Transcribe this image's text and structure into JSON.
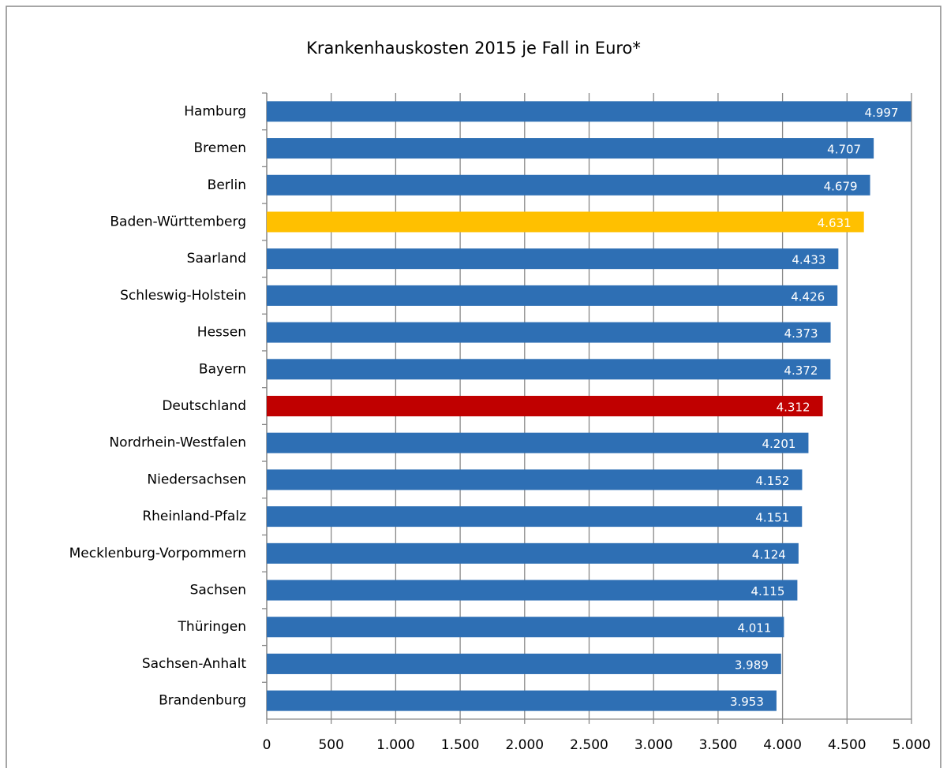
{
  "chart_data": {
    "type": "hbar",
    "title": "Krankenhauskosten 2015 je Fall in Euro*",
    "categories": [
      "Hamburg",
      "Bremen",
      "Berlin",
      "Baden-Württemberg",
      "Saarland",
      "Schleswig-Holstein",
      "Hessen",
      "Bayern",
      "Deutschland",
      "Nordrhein-Westfalen",
      "Niedersachsen",
      "Rheinland-Pfalz",
      "Mecklenburg-Vorpommern",
      "Sachsen",
      "Thüringen",
      "Sachsen-Anhalt",
      "Brandenburg"
    ],
    "values": [
      4997,
      4707,
      4679,
      4631,
      4433,
      4426,
      4373,
      4372,
      4312,
      4201,
      4152,
      4151,
      4124,
      4115,
      4011,
      3989,
      3953
    ],
    "value_labels": [
      "4.997",
      "4.707",
      "4.679",
      "4.631",
      "4.433",
      "4.426",
      "4.373",
      "4.372",
      "4.312",
      "4.201",
      "4.152",
      "4.151",
      "4.124",
      "4.115",
      "4.011",
      "3.989",
      "3.953"
    ],
    "colors": [
      "#2e6fb4",
      "#2e6fb4",
      "#2e6fb4",
      "#ffc000",
      "#2e6fb4",
      "#2e6fb4",
      "#2e6fb4",
      "#2e6fb4",
      "#c00000",
      "#2e6fb4",
      "#2e6fb4",
      "#2e6fb4",
      "#2e6fb4",
      "#2e6fb4",
      "#2e6fb4",
      "#2e6fb4",
      "#2e6fb4"
    ],
    "xlim": [
      0,
      5000
    ],
    "xticks": [
      0,
      500,
      {
        "value": 1000,
        "label": "1.000"
      },
      {
        "value": 1500,
        "label": "1.500"
      },
      {
        "value": 2000,
        "label": "2.000"
      },
      {
        "value": 2500,
        "label": "2.500"
      },
      {
        "value": 3000,
        "label": "3.000"
      },
      {
        "value": 3500,
        "label": "3.500"
      },
      {
        "value": 4000,
        "label": "4.000"
      },
      {
        "value": 4500,
        "label": "4.500"
      },
      {
        "value": 5000,
        "label": "5.000"
      }
    ],
    "grid": true
  }
}
